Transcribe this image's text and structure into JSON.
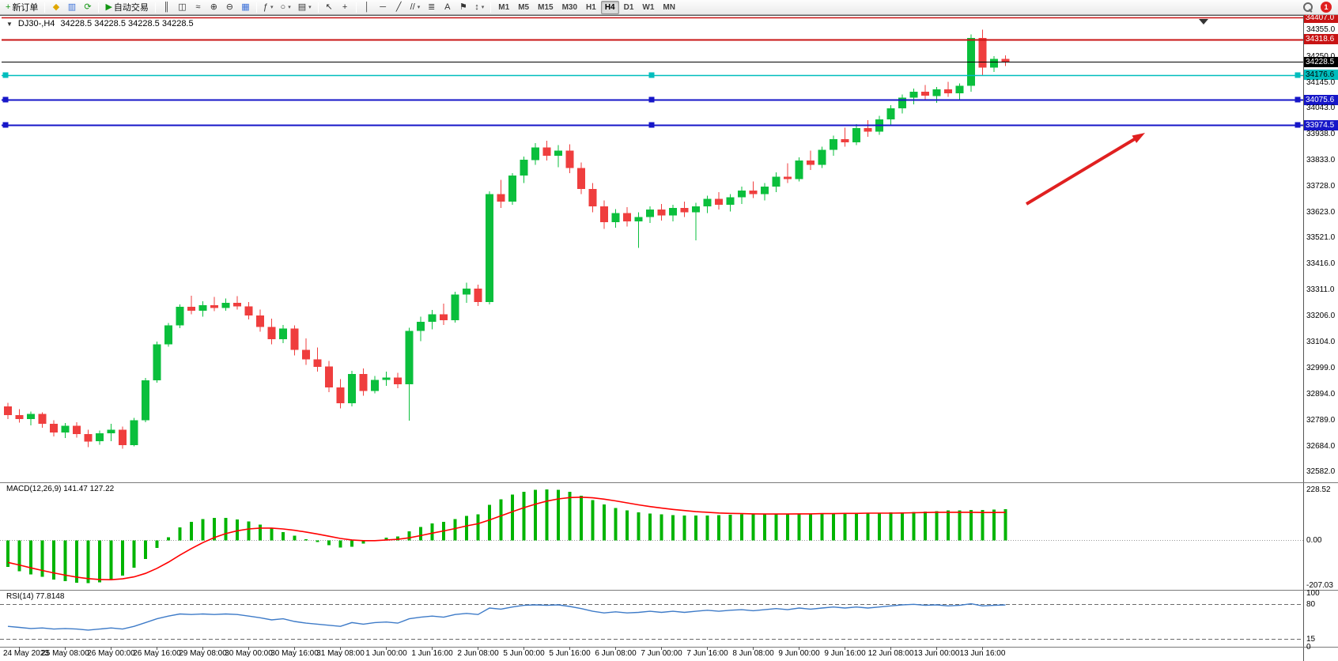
{
  "toolbar": {
    "active_timeframe": "H4",
    "caret_glyph": "▾",
    "notification_count": "1",
    "items": [
      {
        "name": "new-order-button",
        "glyph": "+",
        "glyph_color": "#149614",
        "label": "新订单"
      },
      {
        "sep": true
      },
      {
        "name": "profile-icon-button",
        "glyph": "◆",
        "glyph_color": "#dfa700"
      },
      {
        "name": "market-watch-button",
        "glyph": "▥",
        "glyph_color": "#3a6fd8"
      },
      {
        "name": "refresh-button",
        "glyph": "⟳",
        "glyph_color": "#149614"
      },
      {
        "sep": true
      },
      {
        "name": "autotrading-button",
        "glyph": "▶",
        "glyph_color": "#149614",
        "label": "自动交易"
      },
      {
        "sep": true
      },
      {
        "name": "bar-chart-button",
        "glyph": "║"
      },
      {
        "name": "candlestick-chart-button",
        "glyph": "◫"
      },
      {
        "name": "line-chart-button",
        "glyph": "≈"
      },
      {
        "name": "zoom-in-button",
        "glyph": "⊕"
      },
      {
        "name": "zoom-out-button",
        "glyph": "⊖"
      },
      {
        "name": "tile-windows-button",
        "glyph": "▦",
        "glyph_color": "#3a6fd8"
      },
      {
        "sep": true
      },
      {
        "name": "indicators-button",
        "glyph": "ƒ",
        "caret": true
      },
      {
        "name": "periods-button",
        "glyph": "○",
        "caret": true
      },
      {
        "name": "templates-button",
        "glyph": "▤",
        "caret": true
      },
      {
        "sep": true
      },
      {
        "name": "cursor-button",
        "glyph": "↖"
      },
      {
        "name": "crosshair-button",
        "glyph": "+"
      },
      {
        "sep": true
      },
      {
        "name": "vertical-line-button",
        "glyph": "│"
      },
      {
        "name": "horizontal-line-button",
        "glyph": "─"
      },
      {
        "name": "trendline-button",
        "glyph": "╱"
      },
      {
        "name": "equidistant-channel-button",
        "glyph": "//",
        "caret": true
      },
      {
        "name": "fibonacci-button",
        "glyph": "≣"
      },
      {
        "name": "text-button",
        "glyph": "A"
      },
      {
        "name": "text-label-button",
        "glyph": "⚑"
      },
      {
        "name": "arrows-button",
        "glyph": "↕",
        "caret": true
      },
      {
        "sep": true
      },
      {
        "name": "timeframe-m1-button",
        "tf": "M1"
      },
      {
        "name": "timeframe-m5-button",
        "tf": "M5"
      },
      {
        "name": "timeframe-m15-button",
        "tf": "M15"
      },
      {
        "name": "timeframe-m30-button",
        "tf": "M30"
      },
      {
        "name": "timeframe-h1-button",
        "tf": "H1"
      },
      {
        "name": "timeframe-h4-button",
        "tf": "H4"
      },
      {
        "name": "timeframe-d1-button",
        "tf": "D1"
      },
      {
        "name": "timeframe-w1-button",
        "tf": "W1"
      },
      {
        "name": "timeframe-mn-button",
        "tf": "MN"
      }
    ]
  },
  "chart": {
    "collapse_glyph": "▼",
    "title": "DJ30-,H4",
    "ohlc": "34228.5 34228.5 34228.5 34228.5",
    "current_price": "34228.5",
    "axis_ticks": [
      "34355.0",
      "34250.0",
      "34145.0",
      "34043.0",
      "33938.0",
      "33833.0",
      "33728.0",
      "33623.0",
      "33521.0",
      "33416.0",
      "33311.0",
      "33206.0",
      "33104.0",
      "32999.0",
      "32894.0",
      "32789.0",
      "32684.0",
      "32582.0"
    ],
    "hlines": [
      {
        "price": 34407.0,
        "label": "34407.0",
        "color": "#c81414",
        "width": 1.5,
        "badge_text_color": "#ffffff",
        "handles": false
      },
      {
        "price": 34318.6,
        "label": "34318.6",
        "color": "#c81414",
        "width": 2,
        "badge_text_color": "#ffffff",
        "handles": false
      },
      {
        "price": 34228.5,
        "label": "34228.5",
        "color": "#000000",
        "width": 1,
        "badge_text_color": "#ffffff",
        "handles": false
      },
      {
        "price": 34176.6,
        "label": "34176.6",
        "color": "#00bdbd",
        "width": 1.5,
        "badge_text_color": "#000000",
        "handles": true
      },
      {
        "price": 34075.6,
        "label": "34075.6",
        "color": "#1616c8",
        "width": 2,
        "badge_text_color": "#ffffff",
        "handles": true
      },
      {
        "price": 33974.5,
        "label": "33974.5",
        "color": "#1616c8",
        "width": 2,
        "badge_text_color": "#ffffff",
        "handles": true
      }
    ],
    "time_labels": [
      "24 May 2023",
      "25 May 08:00",
      "26 May 00:00",
      "26 May 16:00",
      "29 May 08:00",
      "30 May 00:00",
      "30 May 16:00",
      "31 May 08:00",
      "1 Jun 00:00",
      "1 Jun 16:00",
      "2 Jun 08:00",
      "5 Jun 00:00",
      "5 Jun 16:00",
      "6 Jun 08:00",
      "7 Jun 00:00",
      "7 Jun 16:00",
      "8 Jun 08:00",
      "9 Jun 00:00",
      "9 Jun 16:00",
      "12 Jun 08:00",
      "13 Jun 00:00",
      "13 Jun 16:00"
    ]
  },
  "chart_data": {
    "type": "candlestick",
    "symbol": "DJ30-",
    "timeframe": "H4",
    "ylim": [
      32582,
      34407
    ],
    "candles_ohlc": [
      [
        32845,
        32860,
        32795,
        32810
      ],
      [
        32810,
        32835,
        32780,
        32795
      ],
      [
        32795,
        32825,
        32770,
        32815
      ],
      [
        32815,
        32822,
        32760,
        32775
      ],
      [
        32775,
        32790,
        32725,
        32740
      ],
      [
        32740,
        32778,
        32718,
        32768
      ],
      [
        32768,
        32782,
        32720,
        32735
      ],
      [
        32735,
        32752,
        32682,
        32705
      ],
      [
        32705,
        32748,
        32692,
        32738
      ],
      [
        32738,
        32775,
        32705,
        32752
      ],
      [
        32752,
        32765,
        32675,
        32690
      ],
      [
        32690,
        32800,
        32685,
        32790
      ],
      [
        32790,
        32960,
        32782,
        32950
      ],
      [
        32950,
        33105,
        32940,
        33095
      ],
      [
        33095,
        33180,
        33085,
        33170
      ],
      [
        33170,
        33255,
        33160,
        33245
      ],
      [
        33245,
        33290,
        33215,
        33230
      ],
      [
        33230,
        33268,
        33205,
        33252
      ],
      [
        33252,
        33285,
        33228,
        33240
      ],
      [
        33240,
        33278,
        33230,
        33262
      ],
      [
        33262,
        33288,
        33235,
        33247
      ],
      [
        33247,
        33265,
        33195,
        33210
      ],
      [
        33210,
        33235,
        33145,
        33165
      ],
      [
        33165,
        33198,
        33095,
        33115
      ],
      [
        33115,
        33172,
        33100,
        33158
      ],
      [
        33158,
        33170,
        33050,
        33072
      ],
      [
        33072,
        33118,
        33012,
        33035
      ],
      [
        33035,
        33082,
        32985,
        33005
      ],
      [
        33005,
        33028,
        32902,
        32922
      ],
      [
        32922,
        32955,
        32838,
        32858
      ],
      [
        32858,
        32988,
        32845,
        32975
      ],
      [
        32975,
        32998,
        32888,
        32908
      ],
      [
        32908,
        32968,
        32898,
        32952
      ],
      [
        32952,
        32985,
        32928,
        32962
      ],
      [
        32962,
        32980,
        32918,
        32935
      ],
      [
        32935,
        33162,
        32788,
        33148
      ],
      [
        33148,
        33205,
        33108,
        33185
      ],
      [
        33185,
        33232,
        33155,
        33215
      ],
      [
        33215,
        33258,
        33172,
        33192
      ],
      [
        33192,
        33305,
        33182,
        33295
      ],
      [
        33295,
        33342,
        33262,
        33318
      ],
      [
        33318,
        33335,
        33248,
        33265
      ],
      [
        33265,
        33708,
        33255,
        33698
      ],
      [
        33698,
        33755,
        33642,
        33668
      ],
      [
        33668,
        33782,
        33655,
        33772
      ],
      [
        33772,
        33848,
        33742,
        33835
      ],
      [
        33835,
        33902,
        33815,
        33885
      ],
      [
        33885,
        33912,
        33832,
        33852
      ],
      [
        33852,
        33895,
        33805,
        33872
      ],
      [
        33872,
        33898,
        33782,
        33802
      ],
      [
        33802,
        33825,
        33698,
        33718
      ],
      [
        33718,
        33742,
        33625,
        33648
      ],
      [
        33648,
        33672,
        33558,
        33585
      ],
      [
        33585,
        33638,
        33562,
        33622
      ],
      [
        33622,
        33645,
        33568,
        33588
      ],
      [
        33588,
        33625,
        33482,
        33605
      ],
      [
        33605,
        33648,
        33582,
        33635
      ],
      [
        33635,
        33658,
        33592,
        33612
      ],
      [
        33612,
        33655,
        33588,
        33642
      ],
      [
        33642,
        33668,
        33605,
        33625
      ],
      [
        33625,
        33662,
        33512,
        33648
      ],
      [
        33648,
        33692,
        33622,
        33678
      ],
      [
        33678,
        33705,
        33635,
        33655
      ],
      [
        33655,
        33698,
        33628,
        33685
      ],
      [
        33685,
        33728,
        33658,
        33712
      ],
      [
        33712,
        33748,
        33682,
        33698
      ],
      [
        33698,
        33742,
        33672,
        33728
      ],
      [
        33728,
        33785,
        33705,
        33768
      ],
      [
        33768,
        33822,
        33742,
        33758
      ],
      [
        33758,
        33845,
        33748,
        33832
      ],
      [
        33832,
        33872,
        33795,
        33815
      ],
      [
        33815,
        33888,
        33802,
        33875
      ],
      [
        33875,
        33932,
        33852,
        33918
      ],
      [
        33918,
        33965,
        33888,
        33905
      ],
      [
        33905,
        33978,
        33895,
        33962
      ],
      [
        33962,
        33995,
        33928,
        33948
      ],
      [
        33948,
        34012,
        33935,
        33998
      ],
      [
        33998,
        34055,
        33975,
        34042
      ],
      [
        34042,
        34098,
        34022,
        34085
      ],
      [
        34085,
        34122,
        34058,
        34108
      ],
      [
        34108,
        34135,
        34072,
        34092
      ],
      [
        34092,
        34128,
        34065,
        34118
      ],
      [
        34118,
        34148,
        34088,
        34102
      ],
      [
        34102,
        34142,
        34078,
        34132
      ],
      [
        34132,
        34338,
        34108,
        34325
      ],
      [
        34325,
        34358,
        34175,
        34205
      ],
      [
        34205,
        34252,
        34188,
        34240
      ],
      [
        34240,
        34255,
        34212,
        34228.5
      ]
    ],
    "macd": {
      "label": "MACD(12,26,9) 141.47 127.22",
      "scale_max": 228.52,
      "scale_min": -207.03,
      "axis_labels": [
        "228.52",
        "0.00",
        "-207.03"
      ],
      "histogram": [
        -120,
        -140,
        -155,
        -165,
        -178,
        -185,
        -192,
        -195,
        -190,
        -180,
        -160,
        -125,
        -85,
        -35,
        15,
        60,
        85,
        98,
        103,
        102,
        96,
        86,
        72,
        55,
        38,
        22,
        6,
        -8,
        -22,
        -32,
        -28,
        -14,
        0,
        12,
        18,
        42,
        62,
        78,
        84,
        98,
        112,
        118,
        162,
        188,
        208,
        222,
        231,
        233,
        230,
        221,
        204,
        184,
        164,
        148,
        136,
        128,
        123,
        119,
        116,
        114,
        113,
        114,
        115,
        117,
        118,
        119,
        120,
        121,
        122,
        123,
        123,
        124,
        124,
        125,
        125,
        125,
        126,
        127,
        128,
        130,
        132,
        134,
        136,
        137,
        138,
        139,
        140,
        141.47
      ],
      "signal": [
        -100,
        -112,
        -125,
        -137,
        -148,
        -158,
        -167,
        -174,
        -178,
        -179,
        -175,
        -166,
        -150,
        -127,
        -99,
        -67,
        -37,
        -10,
        13,
        31,
        44,
        52,
        56,
        56,
        52,
        46,
        38,
        29,
        19,
        9,
        2,
        -1,
        -1,
        2,
        5,
        12,
        22,
        33,
        43,
        54,
        66,
        76,
        93,
        112,
        131,
        149,
        165,
        179,
        189,
        195,
        197,
        194,
        188,
        180,
        171,
        162,
        154,
        147,
        141,
        136,
        131,
        128,
        125,
        123,
        122,
        121,
        120,
        120,
        120,
        121,
        121,
        122,
        122,
        123,
        123,
        124,
        124,
        124,
        125,
        126,
        127,
        128,
        128,
        128,
        128,
        127,
        127,
        127.22
      ]
    },
    "rsi": {
      "label": "RSI(14) 77.8148",
      "axis_labels": [
        "100",
        "80",
        "15",
        "0"
      ],
      "levels": [
        80,
        15
      ],
      "values": [
        38,
        36,
        34,
        35,
        33,
        34,
        33,
        31,
        33,
        35,
        33,
        38,
        45,
        52,
        57,
        61,
        60,
        61,
        60,
        61,
        60,
        57,
        54,
        50,
        52,
        47,
        44,
        42,
        40,
        38,
        45,
        42,
        45,
        46,
        44,
        52,
        55,
        57,
        55,
        60,
        62,
        60,
        72,
        70,
        74,
        77,
        78,
        77,
        78,
        75,
        71,
        66,
        63,
        65,
        63,
        64,
        66,
        64,
        66,
        64,
        66,
        68,
        66,
        68,
        69,
        67,
        69,
        71,
        69,
        72,
        70,
        72,
        74,
        72,
        74,
        72,
        74,
        76,
        78,
        79,
        77,
        78,
        76,
        77,
        80,
        76,
        77,
        77.81
      ]
    }
  },
  "colors": {
    "candle_up": "#0abf3c",
    "candle_down": "#ef3e3e",
    "macd_histogram": "#00b400",
    "macd_signal": "#ff0000",
    "rsi_line": "#3e7bc8",
    "arrow": "#e02020"
  }
}
